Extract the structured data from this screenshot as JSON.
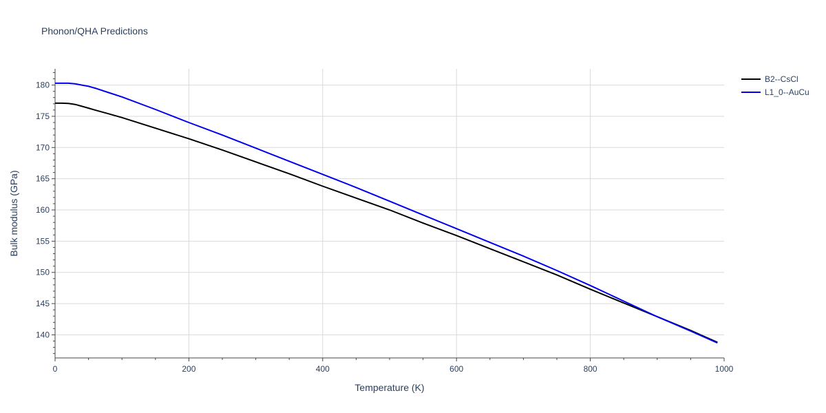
{
  "chart_data": {
    "type": "line",
    "title": "Phonon/QHA Predictions",
    "xlabel": "Temperature (K)",
    "ylabel": "Bulk modulus (GPa)",
    "xlim": [
      0,
      1000
    ],
    "ylim": [
      136.3,
      182.6
    ],
    "x_ticks": [
      0,
      200,
      400,
      600,
      800,
      1000
    ],
    "y_ticks": [
      140,
      145,
      150,
      155,
      160,
      165,
      170,
      175,
      180
    ],
    "grid": true,
    "legend": "top-right",
    "series": [
      {
        "name": "B2--CsCl",
        "color": "#000000",
        "x": [
          0,
          10,
          20,
          30,
          40,
          50,
          60,
          80,
          100,
          150,
          200,
          250,
          300,
          350,
          400,
          450,
          500,
          550,
          600,
          650,
          700,
          750,
          800,
          850,
          900,
          950,
          990
        ],
        "y": [
          177.1,
          177.1,
          177.05,
          176.9,
          176.6,
          176.3,
          176.0,
          175.4,
          174.8,
          173.1,
          171.4,
          169.6,
          167.7,
          165.8,
          163.8,
          161.9,
          160.0,
          157.9,
          155.9,
          153.8,
          151.7,
          149.6,
          147.3,
          145.1,
          142.9,
          140.7,
          138.8
        ]
      },
      {
        "name": "L1_0--AuCu",
        "color": "#0000ee",
        "x": [
          0,
          10,
          20,
          30,
          40,
          50,
          60,
          80,
          100,
          150,
          200,
          250,
          300,
          350,
          400,
          450,
          500,
          550,
          600,
          650,
          700,
          750,
          800,
          850,
          900,
          950,
          990
        ],
        "y": [
          180.3,
          180.3,
          180.3,
          180.2,
          180.0,
          179.8,
          179.5,
          178.8,
          178.1,
          176.1,
          174.0,
          172.0,
          169.9,
          167.8,
          165.7,
          163.6,
          161.4,
          159.2,
          157.0,
          154.8,
          152.6,
          150.3,
          147.9,
          145.4,
          142.9,
          140.6,
          138.7
        ]
      }
    ]
  }
}
